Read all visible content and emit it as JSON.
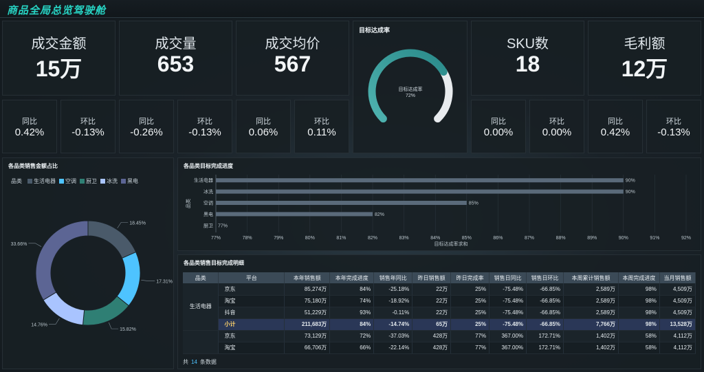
{
  "header": {
    "title": "商品全局总览驾驶舱"
  },
  "kpis": [
    {
      "label": "成交金额",
      "value": "15万"
    },
    {
      "label": "成交量",
      "value": "653"
    },
    {
      "label": "成交均价",
      "value": "567"
    },
    {
      "label": "SKU数",
      "value": "18"
    },
    {
      "label": "毛利额",
      "value": "12万"
    }
  ],
  "comparisons": [
    {
      "label": "同比",
      "value": "0.42%"
    },
    {
      "label": "环比",
      "value": "-0.13%"
    },
    {
      "label": "同比",
      "value": "-0.26%"
    },
    {
      "label": "环比",
      "value": "-0.13%"
    },
    {
      "label": "同比",
      "value": "0.06%"
    },
    {
      "label": "环比",
      "value": "0.11%"
    },
    {
      "label": "同比",
      "value": "0.00%"
    },
    {
      "label": "环比",
      "value": "0.00%"
    },
    {
      "label": "同比",
      "value": "0.42%"
    },
    {
      "label": "环比",
      "value": "-0.13%"
    }
  ],
  "gauge": {
    "title": "目标达成率",
    "center_label": "目标达成率",
    "center_value": "72%",
    "value": 72,
    "colors": {
      "filled_start": "#4fb3b0",
      "filled_end": "#2a8a8a",
      "track": "#e8ebee"
    }
  },
  "pie_panel": {
    "title": "各品类销售金额占比",
    "legend_title": "品类"
  },
  "bar_panel": {
    "title": "各品类目标完成进度"
  },
  "table_panel": {
    "title": "各品类销售目标完成明细",
    "columns": [
      "品类",
      "平台",
      "本年销售额",
      "本年完成进度",
      "销售年同比",
      "昨日销售额",
      "昨日完成率",
      "销售日同比",
      "销售日环比",
      "本周累计销售额",
      "本周完成进度",
      "当月销售额"
    ],
    "category": "生活电器",
    "rows": [
      [
        "京东",
        "85,274万",
        "84%",
        "-25.18%",
        "22万",
        "25%",
        "-75.48%",
        "-66.85%",
        "2,589万",
        "98%",
        "4,509万"
      ],
      [
        "淘宝",
        "75,180万",
        "74%",
        "-18.92%",
        "22万",
        "25%",
        "-75.48%",
        "-66.85%",
        "2,589万",
        "98%",
        "4,509万"
      ],
      [
        "抖音",
        "51,229万",
        "93%",
        "-0.11%",
        "22万",
        "25%",
        "-75.48%",
        "-66.85%",
        "2,589万",
        "98%",
        "4,509万"
      ]
    ],
    "subtotal": [
      "小计",
      "211,683万",
      "84%",
      "-14.74%",
      "65万",
      "25%",
      "-75.48%",
      "-66.85%",
      "7,766万",
      "98%",
      "13,528万"
    ],
    "rows2": [
      [
        "京东",
        "73,129万",
        "72%",
        "-37.03%",
        "428万",
        "77%",
        "367.00%",
        "172.71%",
        "1,402万",
        "58%",
        "4,112万"
      ],
      [
        "淘宝",
        "66,706万",
        "66%",
        "-22.14%",
        "428万",
        "77%",
        "367.00%",
        "172.71%",
        "1,402万",
        "58%",
        "4,112万"
      ]
    ],
    "footer_prefix": "共",
    "footer_count": "14",
    "footer_suffix": "条数据"
  },
  "chart_data": [
    {
      "type": "pie",
      "title": "各品类销售金额占比",
      "legend_title": "品类",
      "legend_placement": "top-left",
      "style": "donut",
      "categories": [
        "生活电器",
        "空调",
        "厨卫",
        "冰洗",
        "黑电"
      ],
      "colors": [
        "#4a5a6a",
        "#4ec3ff",
        "#2f7f74",
        "#a9c4ff",
        "#5c6594"
      ],
      "values": [
        18.45,
        17.31,
        15.82,
        14.76,
        33.66
      ],
      "labels": [
        "18.45%",
        "17.31%",
        "15.82%",
        "14.76%",
        "33.66%"
      ]
    },
    {
      "type": "bar",
      "orientation": "horizontal",
      "title": "各品类目标完成进度",
      "categories": [
        "生活电器",
        "冰洗",
        "空调",
        "黑电",
        "厨卫"
      ],
      "values": [
        90,
        90,
        85,
        82,
        77
      ],
      "labels": [
        "90%",
        "90%",
        "85%",
        "82%",
        "77%"
      ],
      "xlabel": "目标达成率求和",
      "ylabel": "品类",
      "xlim": [
        77,
        92
      ],
      "xticks": [
        "77%",
        "78%",
        "79%",
        "80%",
        "81%",
        "82%",
        "83%",
        "84%",
        "85%",
        "86%",
        "87%",
        "88%",
        "89%",
        "90%",
        "91%",
        "92%"
      ],
      "bar_color": "#5a6a7a",
      "grid": true
    }
  ]
}
